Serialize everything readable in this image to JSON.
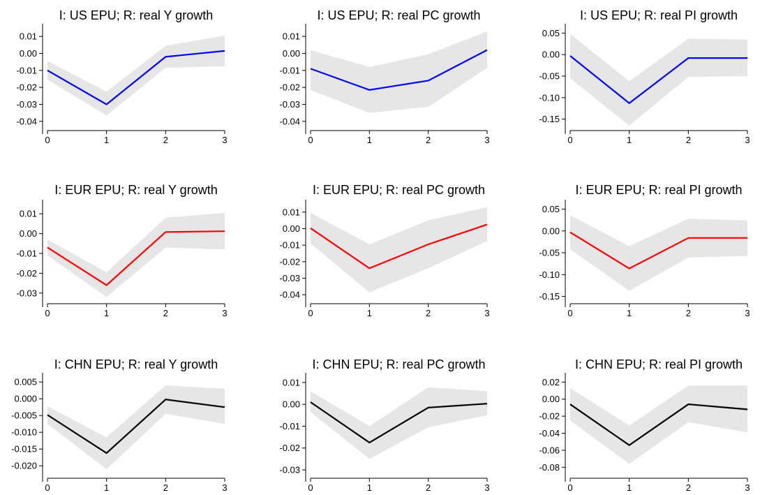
{
  "chart_data": [
    {
      "type": "line",
      "title": "I: US EPU; R: real Y growth",
      "x": [
        0,
        1,
        2,
        3
      ],
      "ylim": [
        -0.045,
        0.015
      ],
      "yticks": [
        "0.01",
        "0.00",
        "-0.01",
        "-0.02",
        "-0.03",
        "-0.04"
      ],
      "xticks": [
        "0",
        "1",
        "2",
        "3"
      ],
      "series": [
        {
          "values": [
            -0.01,
            -0.03,
            -0.002,
            0.0015
          ],
          "lower": [
            -0.0155,
            -0.0365,
            -0.0085,
            -0.0075
          ],
          "upper": [
            -0.0045,
            -0.0225,
            0.0045,
            0.0105
          ]
        }
      ],
      "line_color": "#0000ff",
      "band_color": "#e6e6e6"
    },
    {
      "type": "line",
      "title": "I: US EPU; R: real PC growth",
      "x": [
        0,
        1,
        2,
        3
      ],
      "ylim": [
        -0.045,
        0.015
      ],
      "yticks": [
        "0.01",
        "0.00",
        "-0.01",
        "-0.02",
        "-0.03",
        "-0.04"
      ],
      "xticks": [
        "0",
        "1",
        "2",
        "3"
      ],
      "series": [
        {
          "values": [
            -0.009,
            -0.0215,
            -0.016,
            0.002
          ],
          "lower": [
            -0.0215,
            -0.035,
            -0.0315,
            -0.0085
          ],
          "upper": [
            0.002,
            -0.008,
            -0.0005,
            0.013
          ]
        }
      ],
      "line_color": "#0000ff",
      "band_color": "#e6e6e6"
    },
    {
      "type": "line",
      "title": "I: US EPU; R: real PI growth",
      "x": [
        0,
        1,
        2,
        3
      ],
      "ylim": [
        -0.175,
        0.062
      ],
      "yticks": [
        "0.05",
        "0.00",
        "-0.05",
        "-0.10",
        "-0.15"
      ],
      "xticks": [
        "0",
        "1",
        "2",
        "3"
      ],
      "series": [
        {
          "values": [
            -0.003,
            -0.113,
            -0.008,
            -0.008
          ],
          "lower": [
            -0.055,
            -0.165,
            -0.052,
            -0.05
          ],
          "upper": [
            0.048,
            -0.062,
            0.037,
            0.035
          ]
        }
      ],
      "line_color": "#0000ff",
      "band_color": "#e6e6e6"
    },
    {
      "type": "line",
      "title": "I: EUR EPU; R: real Y growth",
      "x": [
        0,
        1,
        2,
        3
      ],
      "ylim": [
        -0.035,
        0.015
      ],
      "yticks": [
        "0.01",
        "0.00",
        "-0.01",
        "-0.02",
        "-0.03"
      ],
      "xticks": [
        "0",
        "1",
        "2",
        "3"
      ],
      "series": [
        {
          "values": [
            -0.007,
            -0.026,
            0.0008,
            0.0012
          ],
          "lower": [
            -0.011,
            -0.032,
            -0.007,
            -0.008
          ],
          "upper": [
            -0.003,
            -0.0195,
            0.008,
            0.0105
          ]
        }
      ],
      "line_color": "#ff0000",
      "band_color": "#e6e6e6"
    },
    {
      "type": "line",
      "title": "I: EUR EPU; R: real PC growth",
      "x": [
        0,
        1,
        2,
        3
      ],
      "ylim": [
        -0.045,
        0.015
      ],
      "yticks": [
        "0.01",
        "0.00",
        "-0.01",
        "-0.02",
        "-0.03",
        "-0.04"
      ],
      "xticks": [
        "0",
        "1",
        "2",
        "3"
      ],
      "series": [
        {
          "values": [
            0.0003,
            -0.024,
            -0.0095,
            0.0025
          ],
          "lower": [
            -0.009,
            -0.0385,
            -0.024,
            -0.0075
          ],
          "upper": [
            0.0095,
            -0.0095,
            0.005,
            0.013
          ]
        }
      ],
      "line_color": "#ff0000",
      "band_color": "#e6e6e6"
    },
    {
      "type": "line",
      "title": "I: EUR EPU; R: real PI growth",
      "x": [
        0,
        1,
        2,
        3
      ],
      "ylim": [
        -0.165,
        0.062
      ],
      "yticks": [
        "0.05",
        "0.00",
        "-0.05",
        "-0.10",
        "-0.15"
      ],
      "xticks": [
        "0",
        "1",
        "2",
        "3"
      ],
      "series": [
        {
          "values": [
            -0.003,
            -0.086,
            -0.016,
            -0.016
          ],
          "lower": [
            -0.042,
            -0.137,
            -0.061,
            -0.057
          ],
          "upper": [
            0.036,
            -0.035,
            0.028,
            0.024
          ]
        }
      ],
      "line_color": "#ff0000",
      "band_color": "#e6e6e6"
    },
    {
      "type": "line",
      "title": "I: CHN EPU; R: real Y growth",
      "x": [
        0,
        1,
        2,
        3
      ],
      "ylim": [
        -0.0235,
        0.0065
      ],
      "yticks": [
        "0.005",
        "0.000",
        "-0.005",
        "-0.010",
        "-0.015",
        "-0.020"
      ],
      "xticks": [
        "0",
        "1",
        "2",
        "3"
      ],
      "series": [
        {
          "values": [
            -0.0048,
            -0.0162,
            -0.0002,
            -0.0025
          ],
          "lower": [
            -0.0075,
            -0.021,
            -0.0045,
            -0.0075
          ],
          "upper": [
            -0.0022,
            -0.0115,
            0.004,
            0.003
          ]
        }
      ],
      "line_color": "#000000",
      "band_color": "#e6e6e6"
    },
    {
      "type": "line",
      "title": "I: CHN EPU; R: real PC growth",
      "x": [
        0,
        1,
        2,
        3
      ],
      "ylim": [
        -0.0335,
        0.0125
      ],
      "yticks": [
        "0.01",
        "0.00",
        "-0.01",
        "-0.02",
        "-0.03"
      ],
      "xticks": [
        "0",
        "1",
        "2",
        "3"
      ],
      "series": [
        {
          "values": [
            0.001,
            -0.0175,
            -0.0015,
            0.0003
          ],
          "lower": [
            -0.0035,
            -0.025,
            -0.0105,
            -0.005
          ],
          "upper": [
            0.006,
            -0.01,
            0.0078,
            0.006
          ]
        }
      ],
      "line_color": "#000000",
      "band_color": "#e6e6e6"
    },
    {
      "type": "line",
      "title": "I: CHN EPU; R: real PI growth",
      "x": [
        0,
        1,
        2,
        3
      ],
      "ylim": [
        -0.092,
        0.026
      ],
      "yticks": [
        "0.02",
        "0.00",
        "-0.02",
        "-0.04",
        "-0.06",
        "-0.08"
      ],
      "xticks": [
        "0",
        "1",
        "2",
        "3"
      ],
      "series": [
        {
          "values": [
            -0.006,
            -0.054,
            -0.006,
            -0.012
          ],
          "lower": [
            -0.025,
            -0.076,
            -0.027,
            -0.039
          ],
          "upper": [
            0.013,
            -0.031,
            0.016,
            0.016
          ]
        }
      ],
      "line_color": "#000000",
      "band_color": "#e6e6e6"
    }
  ]
}
